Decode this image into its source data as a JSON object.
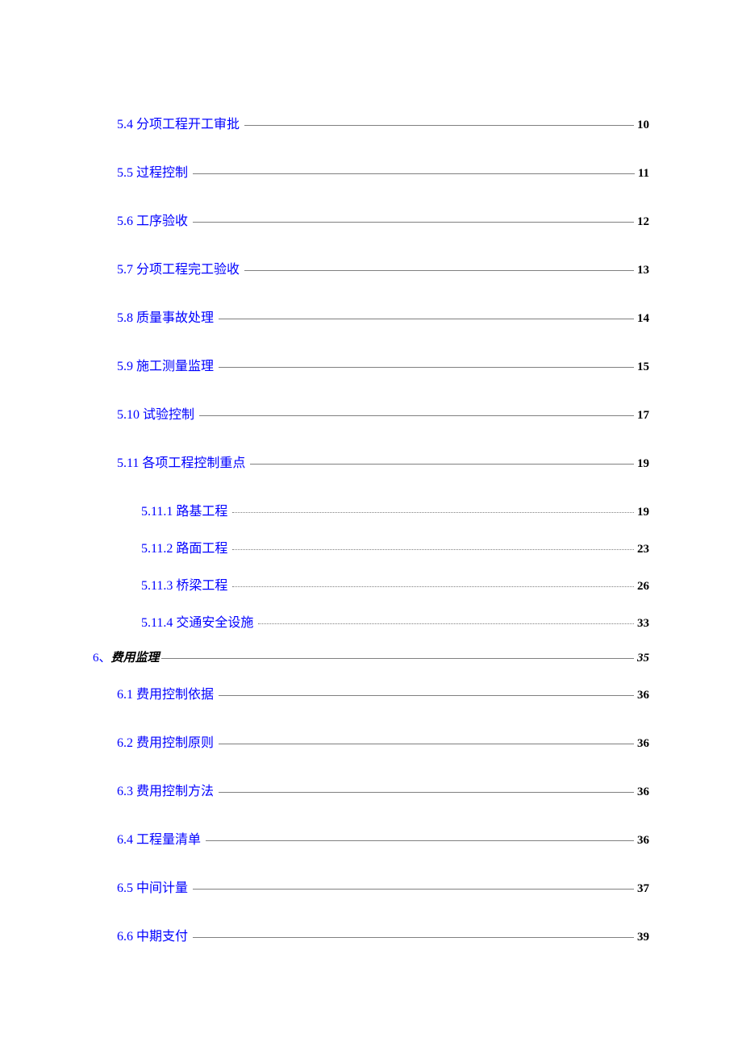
{
  "toc": {
    "entries": [
      {
        "level": 2,
        "label": "5.4 分项工程开工审批",
        "page": "10",
        "leader": "solid",
        "bold": false,
        "italic": false,
        "isSection": false
      },
      {
        "level": 2,
        "label": "5.5 过程控制",
        "page": "11",
        "leader": "solid",
        "bold": false,
        "italic": false,
        "isSection": false
      },
      {
        "level": 2,
        "label": "5.6 工序验收",
        "page": "12",
        "leader": "solid",
        "bold": false,
        "italic": false,
        "isSection": false
      },
      {
        "level": 2,
        "label": "5.7 分项工程完工验收",
        "page": "13",
        "leader": "solid",
        "bold": false,
        "italic": false,
        "isSection": false
      },
      {
        "level": 2,
        "label": "5.8 质量事故处理",
        "page": "14",
        "leader": "solid",
        "bold": false,
        "italic": false,
        "isSection": false
      },
      {
        "level": 2,
        "label": "5.9 施工测量监理",
        "page": "15",
        "leader": "solid",
        "bold": false,
        "italic": false,
        "isSection": false
      },
      {
        "level": 2,
        "label": "5.10 试验控制",
        "page": "17",
        "leader": "solid",
        "bold": false,
        "italic": false,
        "isSection": false
      },
      {
        "level": 2,
        "label": "5.11 各项工程控制重点",
        "page": "19",
        "leader": "solid",
        "bold": false,
        "italic": false,
        "isSection": false
      },
      {
        "level": 3,
        "label": "5.11.1 路基工程",
        "page": "19",
        "leader": "dotted",
        "bold": false,
        "italic": false,
        "isSection": false
      },
      {
        "level": 3,
        "label": "5.11.2 路面工程",
        "page": "23",
        "leader": "dotted",
        "bold": false,
        "italic": false,
        "isSection": false
      },
      {
        "level": 3,
        "label": "5.11.3 桥梁工程",
        "page": "26",
        "leader": "dotted",
        "bold": false,
        "italic": false,
        "isSection": false
      },
      {
        "level": 3,
        "label": "5.11.4 交通安全设施",
        "page": "33",
        "leader": "dotted",
        "bold": false,
        "italic": false,
        "isSection": false
      },
      {
        "level": 1,
        "num": "6、",
        "title": "费用监理",
        "page": "35",
        "leader": "solid",
        "bold": true,
        "italic": true,
        "isSection": true
      },
      {
        "level": 2,
        "label": "6.1 费用控制依据",
        "page": "36",
        "leader": "solid",
        "bold": false,
        "italic": false,
        "isSection": false
      },
      {
        "level": 2,
        "label": "6.2 费用控制原则",
        "page": "36",
        "leader": "solid",
        "bold": false,
        "italic": false,
        "isSection": false
      },
      {
        "level": 2,
        "label": "6.3 费用控制方法",
        "page": "36",
        "leader": "solid",
        "bold": false,
        "italic": false,
        "isSection": false
      },
      {
        "level": 2,
        "label": "6.4 工程量清单",
        "page": "36",
        "leader": "solid",
        "bold": false,
        "italic": false,
        "isSection": false
      },
      {
        "level": 2,
        "label": "6.5 中间计量",
        "page": "37",
        "leader": "solid",
        "bold": false,
        "italic": false,
        "isSection": false
      },
      {
        "level": 2,
        "label": "6.6 中期支付",
        "page": "39",
        "leader": "solid",
        "bold": false,
        "italic": false,
        "isSection": false
      }
    ]
  },
  "colors": {
    "link_color": "#0000ff",
    "text_color": "#000000",
    "leader_color": "#808080",
    "background": "#ffffff"
  },
  "typography": {
    "font_family": "SimSun",
    "label_fontsize": 16,
    "page_fontsize": 15
  }
}
